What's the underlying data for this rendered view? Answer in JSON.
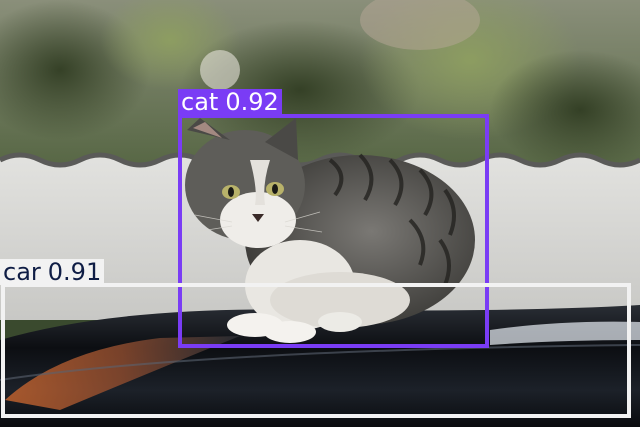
{
  "detections": [
    {
      "id": "cat",
      "label": "cat",
      "score": "0.92",
      "color": "#7a3cf5",
      "text_color": "#ffffff"
    },
    {
      "id": "car",
      "label": "car",
      "score": "0.91",
      "color": "#f2f2f2",
      "text_color": "#0f1d45"
    }
  ],
  "watermark": "",
  "colors": {
    "foliage": "#4a5e35",
    "wall": "#d6d6d4",
    "car_body": "#121519",
    "cat_fur": "#6b6a66"
  }
}
